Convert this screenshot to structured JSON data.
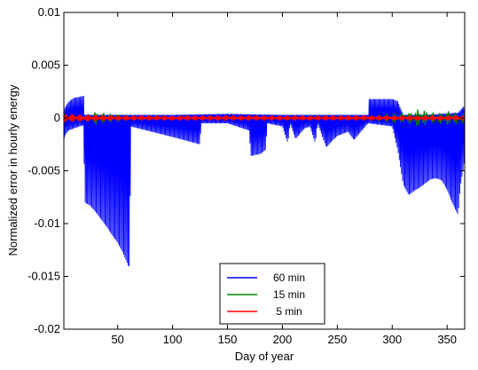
{
  "chart_data": {
    "type": "line",
    "xlabel": "Day of year",
    "ylabel": "Normalized error in hourly energy",
    "xlim": [
      1,
      366
    ],
    "ylim": [
      -0.02,
      0.01
    ],
    "xticks": [
      50,
      100,
      150,
      200,
      250,
      300,
      350
    ],
    "yticks": [
      -0.02,
      -0.015,
      -0.01,
      -0.005,
      0,
      0.005,
      0.01
    ],
    "ytick_labels": [
      "-0.02",
      "-0.015",
      "-0.01",
      "-0.005",
      "0",
      "0.005",
      "0.01"
    ],
    "grid": false,
    "legend_position": "bottom-center",
    "series": [
      {
        "name": "60 min",
        "color": "#0000ff",
        "upper_envelope": {
          "x": [
            1,
            5,
            10,
            15,
            19,
            20,
            40,
            60,
            100,
            150,
            200,
            250,
            278,
            279,
            285,
            300,
            305,
            310,
            330,
            360,
            366
          ],
          "value": [
            0.0008,
            0.0015,
            0.0019,
            0.002,
            0.0021,
            0.0003,
            0.0003,
            0.0003,
            0.0003,
            0.0004,
            0.0003,
            0.0003,
            0.0003,
            0.0018,
            0.0018,
            0.0018,
            0.0016,
            0.0003,
            0.0003,
            0.0005,
            0.0012
          ]
        },
        "lower_envelope": {
          "x": [
            1,
            3,
            5,
            10,
            15,
            19,
            20,
            25,
            30,
            35,
            40,
            45,
            50,
            55,
            60,
            61,
            62,
            100,
            125,
            126,
            150,
            170,
            171,
            180,
            185,
            186,
            200,
            205,
            207,
            212,
            220,
            225,
            230,
            232,
            240,
            245,
            250,
            260,
            265,
            278,
            300,
            305,
            310,
            315,
            320,
            325,
            330,
            335,
            340,
            345,
            350,
            355,
            360,
            362,
            366
          ],
          "value": [
            -0.002,
            -0.0015,
            -0.0012,
            -0.001,
            -0.0008,
            -0.0007,
            -0.008,
            -0.0083,
            -0.0089,
            -0.0096,
            -0.0103,
            -0.0111,
            -0.0118,
            -0.0128,
            -0.0141,
            -0.014,
            -0.0008,
            -0.0018,
            -0.0025,
            -0.0005,
            -0.0005,
            -0.0012,
            -0.0036,
            -0.0034,
            -0.003,
            -0.0005,
            -0.0008,
            -0.0024,
            -0.0005,
            -0.002,
            -0.001,
            -0.0008,
            -0.0024,
            -0.0005,
            -0.0028,
            -0.0022,
            -0.0017,
            -0.0013,
            -0.0021,
            -0.0005,
            -0.0008,
            -0.003,
            -0.0063,
            -0.0073,
            -0.0069,
            -0.0066,
            -0.0062,
            -0.0058,
            -0.0057,
            -0.0059,
            -0.0068,
            -0.0081,
            -0.0092,
            -0.0065,
            -0.004
          ]
        }
      },
      {
        "name": "15 min",
        "color": "#008000",
        "amplitude": {
          "x": [
            1,
            20,
            30,
            40,
            60,
            100,
            200,
            280,
            300,
            315,
            325,
            340,
            350,
            360,
            366
          ],
          "value": [
            0.0004,
            0.0002,
            0.0006,
            0.0004,
            0.0002,
            0.0001,
            0.0001,
            0.0002,
            0.0004,
            0.0005,
            0.0009,
            0.0004,
            0.0007,
            0.0005,
            0.0004
          ]
        }
      },
      {
        "name": "5 min",
        "color": "#ff0000",
        "amplitude": {
          "x": [
            1,
            50,
            150,
            250,
            366
          ],
          "value": [
            0.00035,
            0.0002,
            0.0002,
            0.0002,
            0.0002
          ]
        }
      }
    ]
  }
}
